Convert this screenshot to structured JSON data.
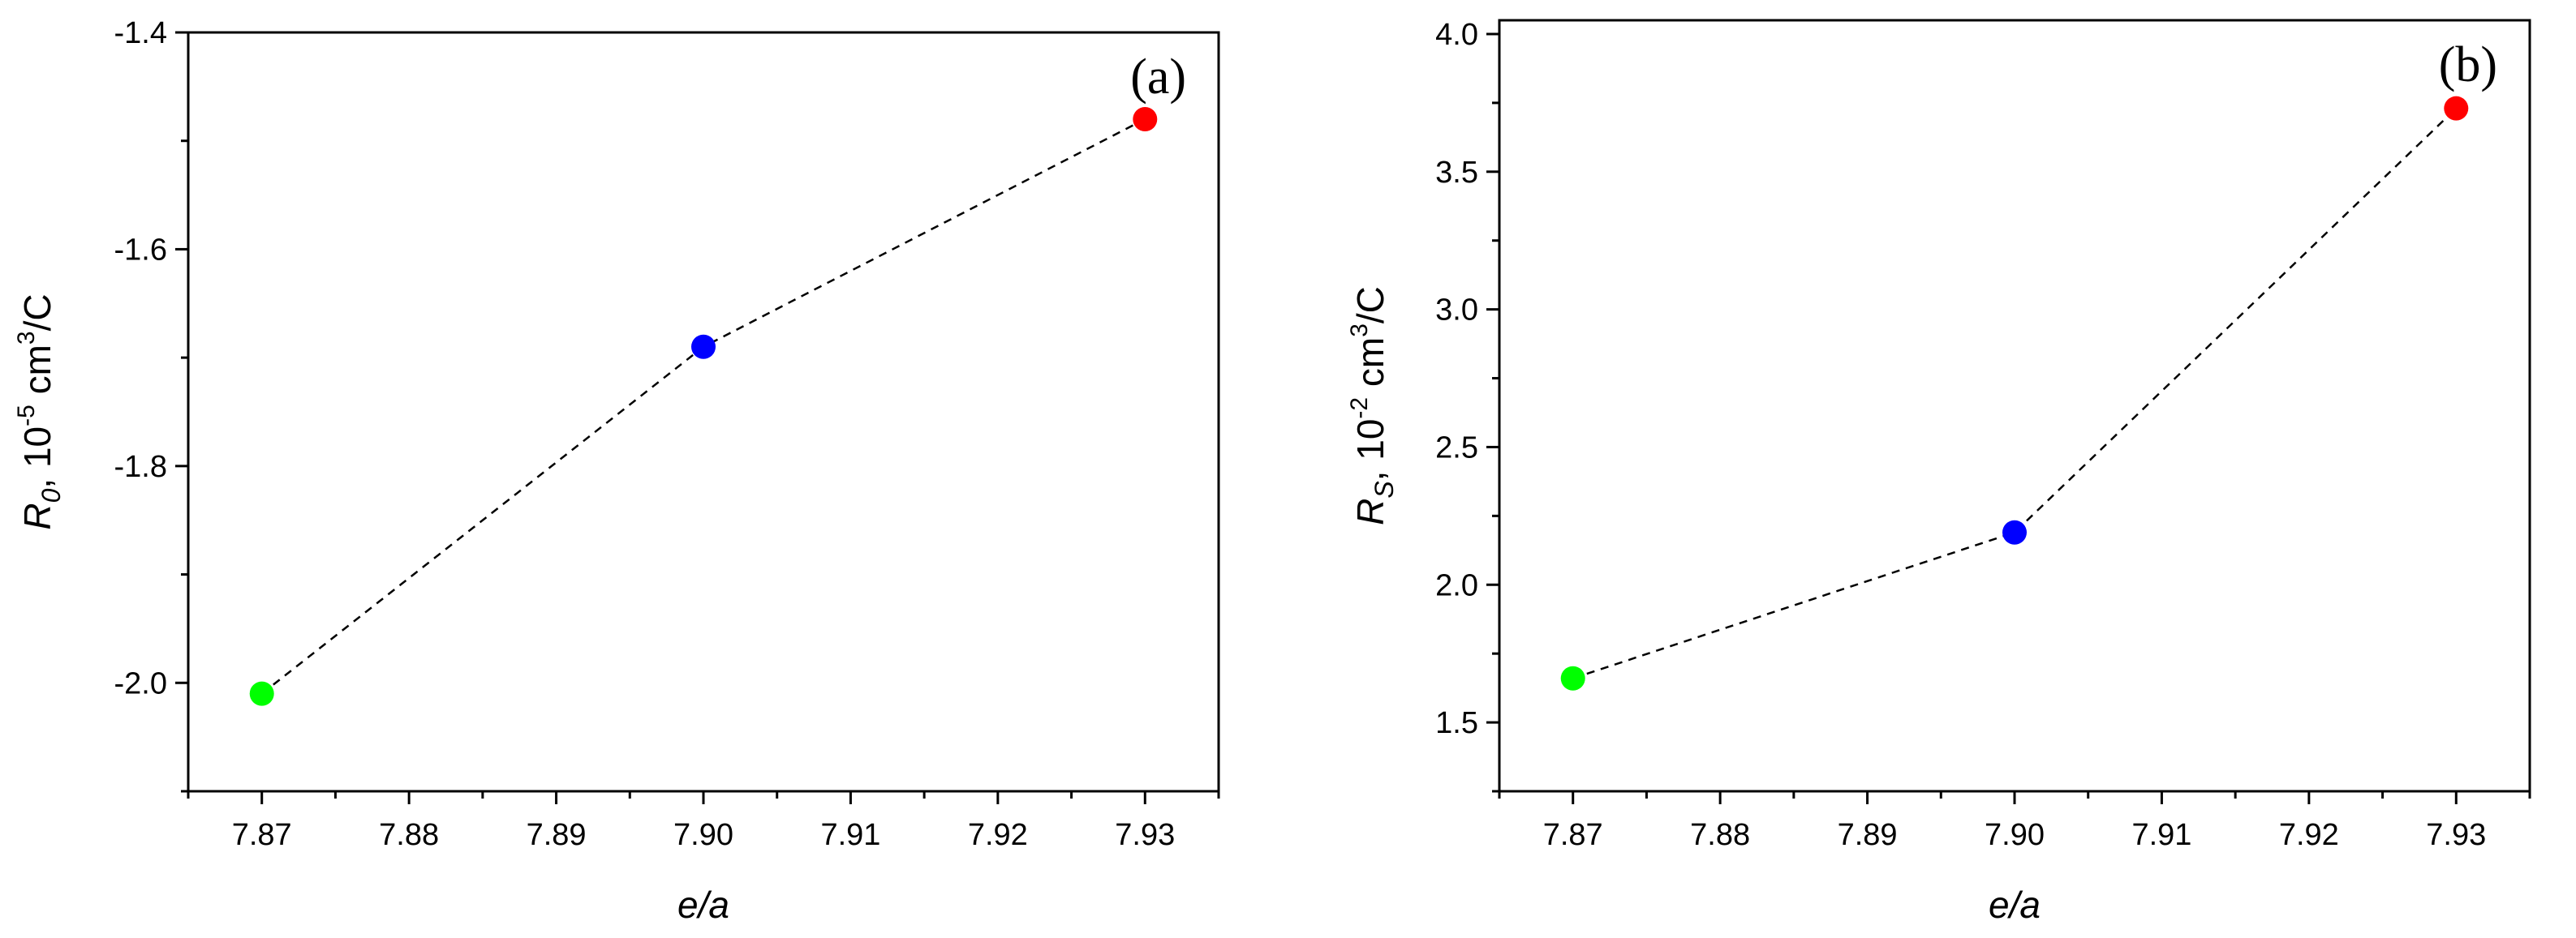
{
  "chart_data": [
    {
      "type": "scatter",
      "panel_label": "(a)",
      "xlabel": "e/a",
      "ylabel_main": "R",
      "ylabel_sub": "0",
      "ylabel_unit_pre": ", 10",
      "ylabel_exp": "-5",
      "ylabel_unit_mid": " cm",
      "ylabel_exp2": "3",
      "ylabel_unit_post": "/C",
      "xlim": [
        7.865,
        7.935
      ],
      "ylim": [
        -2.1,
        -1.4
      ],
      "x_ticks": [
        "7.87",
        "7.88",
        "7.89",
        "7.90",
        "7.91",
        "7.92",
        "7.93"
      ],
      "y_ticks": [
        "-2.0",
        "-1.8",
        "-1.6",
        "-1.4"
      ],
      "points": [
        {
          "x": 7.87,
          "y": -2.01,
          "color": "#00ff00"
        },
        {
          "x": 7.9,
          "y": -1.69,
          "color": "#0000ff"
        },
        {
          "x": 7.93,
          "y": -1.48,
          "color": "#ff0000"
        }
      ],
      "connector": "dashed",
      "grid": false
    },
    {
      "type": "scatter",
      "panel_label": "(b)",
      "xlabel": "e/a",
      "ylabel_main": "R",
      "ylabel_sub": "S",
      "ylabel_unit_pre": ", 10",
      "ylabel_exp": "-2",
      "ylabel_unit_mid": " cm",
      "ylabel_exp2": "3",
      "ylabel_unit_post": "/C",
      "xlim": [
        7.865,
        7.935
      ],
      "ylim": [
        1.25,
        4.05
      ],
      "x_ticks": [
        "7.87",
        "7.88",
        "7.89",
        "7.90",
        "7.91",
        "7.92",
        "7.93"
      ],
      "y_ticks": [
        "1.5",
        "2.0",
        "2.5",
        "3.0",
        "3.5",
        "4.0"
      ],
      "points": [
        {
          "x": 7.87,
          "y": 1.66,
          "color": "#00ff00"
        },
        {
          "x": 7.9,
          "y": 2.19,
          "color": "#0000ff"
        },
        {
          "x": 7.93,
          "y": 3.73,
          "color": "#ff0000"
        }
      ],
      "connector": "dashed",
      "grid": false
    }
  ]
}
